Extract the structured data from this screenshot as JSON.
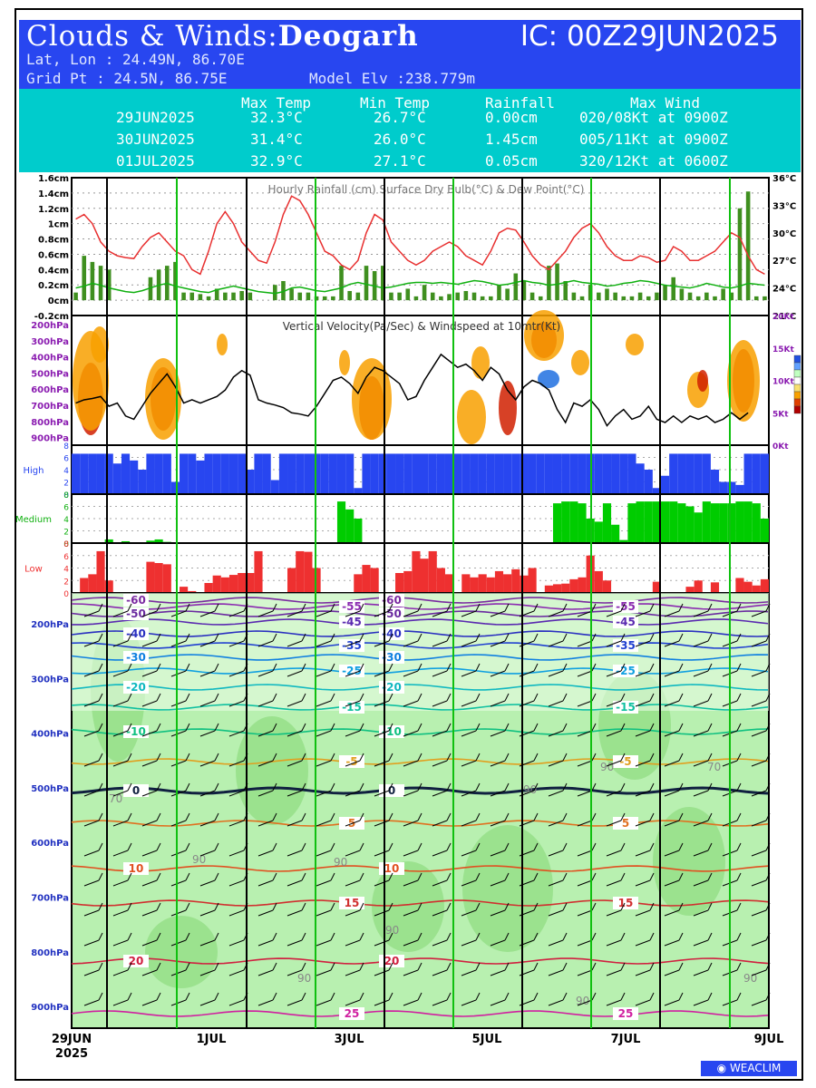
{
  "header": {
    "title_prefix": "Clouds & Winds:",
    "station": "Deogarh",
    "ic": "IC: 00Z29JUN2025",
    "latlon": "Lat, Lon : 24.49N, 86.70E",
    "gridpt": "Grid Pt  : 24.5N, 86.75E",
    "elev": "Model Elv :238.779m"
  },
  "summary": {
    "headers": [
      "Max Temp",
      "Min Temp",
      "Rainfall",
      "Max Wind"
    ],
    "rows": [
      {
        "date": "29JUN2025",
        "max": "32.3°C",
        "min": "26.7°C",
        "rain": "0.00cm",
        "wind": "020/08Kt at 0900Z"
      },
      {
        "date": "30JUN2025",
        "max": "31.4°C",
        "min": "26.0°C",
        "rain": "1.45cm",
        "wind": "005/11Kt at 0900Z"
      },
      {
        "date": "01JUL2025",
        "max": "32.9°C",
        "min": "27.1°C",
        "rain": "0.05cm",
        "wind": "320/12Kt at 0600Z"
      }
    ]
  },
  "colors": {
    "temp": "#e83030",
    "dew": "#10b010",
    "rain": "#3f8f1f",
    "high": "#2846f0",
    "medium": "#00cc00",
    "low": "#ee3030",
    "header": "#2846f0",
    "table": "#00cccc"
  },
  "chart_data": [
    {
      "type": "line",
      "title": "Hourly Rainfall (cm)   Surface Dry Bulb(°C)   & Dew Point(°C)",
      "y_left_ticks": [
        "1.6cm",
        "1.4cm",
        "1.2cm",
        "1cm",
        "0.8cm",
        "0.6cm",
        "0.4cm",
        "0.2cm",
        "0cm",
        "-0.2cm"
      ],
      "y_right_ticks": [
        "36°C",
        "33°C",
        "30°C",
        "27°C",
        "24°C",
        "21°C"
      ],
      "ylim_rain": [
        -0.2,
        1.6
      ],
      "ylim_temp": [
        21,
        36
      ],
      "series": [
        {
          "name": "Surface Dry Bulb(°C)",
          "values": [
            31.5,
            32,
            31,
            29,
            28,
            27.5,
            27.3,
            27.2,
            28.5,
            29.5,
            30,
            29,
            28,
            27.5,
            26,
            25.5,
            28,
            31,
            32.3,
            31,
            29,
            28,
            27,
            26.7,
            29,
            32,
            34,
            33.5,
            32,
            30,
            28,
            27.5,
            26.5,
            26,
            27,
            30,
            32,
            31.4,
            29,
            28,
            27,
            26.5,
            27,
            28,
            28.5,
            29,
            28.5,
            27.5,
            27,
            26.5,
            28,
            30,
            30.5,
            30.3,
            29,
            27.5,
            26.5,
            26,
            27,
            28,
            29.5,
            30.5,
            31,
            30,
            28.5,
            27.5,
            27,
            27,
            27.5,
            27.3,
            26.8,
            27,
            28.5,
            28,
            27,
            27,
            27.5,
            28,
            29,
            30,
            29.5,
            27.5,
            26,
            25.5
          ]
        },
        {
          "name": "Dew Point(°C)",
          "values": [
            24,
            24.2,
            24.5,
            24.3,
            24,
            23.8,
            23.6,
            23.5,
            23.7,
            24,
            24.3,
            24.5,
            24.2,
            24,
            23.8,
            23.6,
            23.5,
            23.8,
            24,
            24.2,
            24,
            23.8,
            23.6,
            23.5,
            23.4,
            23.6,
            24,
            24.1,
            23.9,
            23.7,
            23.6,
            23.8,
            24,
            24.4,
            24.6,
            24.4,
            24.2,
            24,
            24.1,
            24.3,
            24.5,
            24.6,
            24.6,
            24.5,
            24.6,
            24.5,
            24.4,
            24.6,
            24.8,
            24.7,
            24.5,
            24.3,
            24.4,
            24.6,
            24.8,
            24.6,
            24.5,
            24.3,
            24.4,
            24.6,
            24.8,
            24.6,
            24.5,
            24.4,
            24.2,
            24.3,
            24.5,
            24.6,
            24.8,
            24.7,
            24.5,
            24.3,
            24.2,
            24.1,
            24,
            24.2,
            24.5,
            24.3,
            24.1,
            24,
            24.2,
            24.5,
            24.4,
            24.3
          ]
        },
        {
          "name": "Hourly Rainfall (cm)",
          "values": [
            0.1,
            0.58,
            0.5,
            0.45,
            0.4,
            0,
            0,
            0,
            0,
            0.3,
            0.4,
            0.45,
            0.5,
            0.1,
            0.1,
            0.08,
            0.05,
            0.15,
            0.1,
            0.1,
            0.12,
            0.1,
            0,
            0,
            0.2,
            0.25,
            0.15,
            0.1,
            0.1,
            0.05,
            0.05,
            0.05,
            0.45,
            0.12,
            0.1,
            0.45,
            0.38,
            0.45,
            0.1,
            0.1,
            0.15,
            0.05,
            0.2,
            0.1,
            0.05,
            0.08,
            0.1,
            0.12,
            0.1,
            0.05,
            0.05,
            0.2,
            0.15,
            0.35,
            0.25,
            0.1,
            0.05,
            0.45,
            0.48,
            0.25,
            0.1,
            0.05,
            0.2,
            0.1,
            0.15,
            0.1,
            0.05,
            0.05,
            0.1,
            0.05,
            0.1,
            0.2,
            0.3,
            0.15,
            0.1,
            0.05,
            0.1,
            0.05,
            0.15,
            0.1,
            1.2,
            1.42,
            0.05,
            0.05
          ]
        }
      ]
    },
    {
      "type": "heatmap",
      "title": "Vertical Velocity(Pa/Sec) & Windspeed at 10mtr(Kt)",
      "y_left_ticks": [
        "200hPa",
        "300hPa",
        "400hPa",
        "500hPa",
        "600hPa",
        "700hPa",
        "800hPa",
        "900hPa"
      ],
      "y_right_ticks": [
        "20Kt",
        "15Kt",
        "10Kt",
        "5Kt",
        "0Kt"
      ],
      "ylim_wind": [
        0,
        20
      ],
      "series": [
        {
          "name": "Windspeed at 10mtr(Kt)",
          "values": [
            6.5,
            7,
            7.2,
            7.5,
            6,
            6.5,
            4.5,
            4,
            6,
            8,
            9.5,
            11,
            9,
            6.5,
            7,
            6.5,
            7,
            7.5,
            8.5,
            10.5,
            11.5,
            10.8,
            7,
            6.5,
            6.2,
            5.8,
            5,
            4.8,
            4.5,
            6,
            8,
            10,
            10.5,
            9.5,
            8,
            10.5,
            12,
            11.5,
            10.5,
            9.5,
            7,
            7.5,
            10,
            12,
            14,
            13,
            12,
            12.5,
            11.5,
            10,
            12,
            11,
            8.5,
            7,
            9,
            10,
            9.5,
            8.5,
            5.5,
            3.5,
            6.5,
            6,
            7,
            5.5,
            3,
            4.5,
            5.5,
            4,
            4.5,
            6,
            4,
            3.5,
            4.5,
            3.5,
            4.5,
            4,
            4.5,
            3.5,
            4,
            5,
            4,
            5
          ]
        }
      ]
    },
    {
      "type": "bar",
      "title": "High",
      "y_ticks": [
        "8",
        "6",
        "4",
        "2",
        "0"
      ],
      "ylim": [
        0,
        8
      ],
      "values": [
        6.6,
        6.6,
        6.6,
        6.6,
        6.6,
        5,
        6.6,
        5.5,
        4,
        6.6,
        6.6,
        6.6,
        2,
        6.6,
        6.6,
        5.5,
        6.6,
        6.6,
        6.6,
        6.6,
        6.6,
        4,
        6.6,
        6.6,
        2.3,
        6.6,
        6.6,
        6.6,
        6.6,
        6.6,
        6.6,
        6.6,
        6.6,
        6.6,
        1,
        6.6,
        6.6,
        6.6,
        6.6,
        6.6,
        6.6,
        6.6,
        6.6,
        6.6,
        6.6,
        6.6,
        6.6,
        6.6,
        6.6,
        6.6,
        6.6,
        6.6,
        6.6,
        6.6,
        6.6,
        6.6,
        6.6,
        6.6,
        6.6,
        6.6,
        6.6,
        6.6,
        6.6,
        6.6,
        6.6,
        6.6,
        6.6,
        6.6,
        5,
        4,
        1,
        3,
        6.6,
        6.6,
        6.6,
        6.6,
        6.6,
        4,
        2,
        2,
        1.5,
        6.6,
        6.6,
        6.6
      ]
    },
    {
      "type": "bar",
      "title": "Medium",
      "y_ticks": [
        "8",
        "6",
        "4",
        "2",
        "0"
      ],
      "ylim": [
        0,
        8
      ],
      "values": [
        0,
        0,
        0,
        0,
        0.6,
        0,
        0.3,
        0,
        0,
        0.4,
        0.6,
        0.2,
        0,
        0,
        0,
        0,
        0,
        0,
        0,
        0,
        0,
        0,
        0,
        0,
        0,
        0,
        0,
        0,
        0,
        0,
        0,
        0,
        6.8,
        5.5,
        4,
        0,
        0,
        0,
        0,
        0,
        0,
        0,
        0,
        0,
        0,
        0,
        0,
        0,
        0,
        0,
        0,
        0,
        0,
        0,
        0,
        0,
        0,
        0,
        6.5,
        6.8,
        6.8,
        6.5,
        4,
        3.5,
        6.5,
        3,
        0.5,
        6.5,
        6.8,
        6.8,
        6.8,
        6.8,
        6.8,
        6.5,
        6,
        5,
        6.8,
        6.5,
        6.5,
        6.5,
        6.8,
        6.8,
        6.5,
        4
      ]
    },
    {
      "type": "bar",
      "title": "Low",
      "y_ticks": [
        "8",
        "6",
        "4",
        "2",
        "0"
      ],
      "ylim": [
        0,
        8
      ],
      "values": [
        0,
        2.4,
        3,
        6.7,
        2,
        0,
        0,
        0,
        0,
        5,
        4.8,
        4.6,
        0,
        1,
        0.3,
        0,
        1.6,
        2.8,
        2.5,
        2.9,
        3.2,
        3.2,
        6.7,
        0,
        0,
        0,
        4,
        6.7,
        6.6,
        4,
        0,
        0,
        0,
        0,
        3,
        4.5,
        4,
        0,
        0,
        3.2,
        3.5,
        6.7,
        5.5,
        6.7,
        4,
        3,
        0,
        3,
        2.5,
        3,
        2.5,
        3.5,
        3,
        3.8,
        2.8,
        4,
        0,
        1.2,
        1.4,
        1.5,
        2.2,
        2.5,
        6,
        3.5,
        2,
        0,
        0,
        0,
        0,
        0,
        1.8,
        0,
        0,
        0,
        1,
        2,
        0,
        1.7,
        0,
        0,
        2.4,
        1.8,
        1.2,
        2.2
      ]
    },
    {
      "type": "heatmap",
      "title": "",
      "y_ticks": [
        "200hPa",
        "300hPa",
        "400hPa",
        "500hPa",
        "600hPa",
        "700hPa",
        "800hPa",
        "900hPa"
      ],
      "isotherm_labels": [
        "-60",
        "-55",
        "-50",
        "-45",
        "-40",
        "-35",
        "-30",
        "-25",
        "-20",
        "-15",
        "-10",
        "-5",
        "0",
        "5",
        "10",
        "15",
        "20",
        "25"
      ],
      "rh_labels": [
        "70",
        "90"
      ]
    }
  ],
  "x_axis": {
    "labels": [
      {
        "top": "29JUN",
        "bottom": "2025"
      },
      {
        "top": "1JUL",
        "bottom": ""
      },
      {
        "top": "3JUL",
        "bottom": ""
      },
      {
        "top": "5JUL",
        "bottom": ""
      },
      {
        "top": "7JUL",
        "bottom": ""
      },
      {
        "top": "9JUL",
        "bottom": ""
      }
    ]
  },
  "logo": "WEACLIM"
}
